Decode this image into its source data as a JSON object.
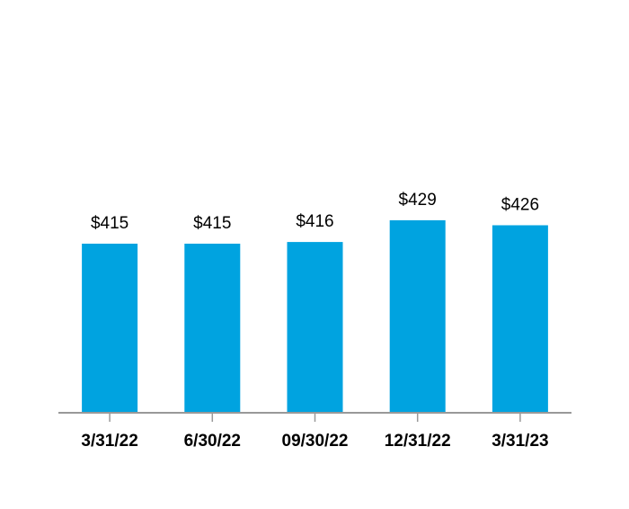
{
  "chart_data": {
    "type": "bar",
    "categories": [
      "3/31/22",
      "6/30/22",
      "09/30/22",
      "12/31/22",
      "3/31/23"
    ],
    "values": [
      415,
      415,
      416,
      429,
      426
    ],
    "value_labels": [
      "$415",
      "$415",
      "$416",
      "$429",
      "$426"
    ],
    "color": "#00a3e0",
    "ylim": [
      314,
      560
    ]
  }
}
